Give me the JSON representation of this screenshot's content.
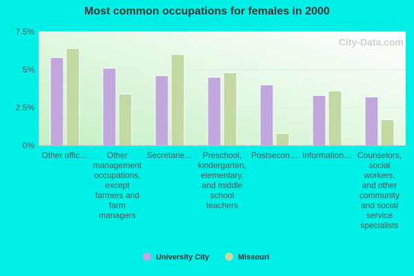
{
  "colors": {
    "background": "#00f0e8",
    "series": [
      "#c0a8dc",
      "#c4d8a4"
    ]
  },
  "chart_data": {
    "type": "bar",
    "title": "Most common occupations for females in 2000",
    "categories": [
      "Other offic…",
      "Other management occupations, except farmers and farm managers",
      "Secretarie…",
      "Preschool, kindergarten, elementary, and middle school teachers",
      "Postsecon…",
      "Information…",
      "Counselors, social workers, and other community and social service specialists"
    ],
    "category_lines": [
      [
        "Other offic…"
      ],
      [
        "Other",
        "management",
        "occupations,",
        "except",
        "farmers and",
        "farm",
        "managers"
      ],
      [
        "Secretarie…"
      ],
      [
        "Preschool,",
        "kindergarten,",
        "elementary,",
        "and middle",
        "school",
        "teachers"
      ],
      [
        "Postsecon…"
      ],
      [
        "Information…"
      ],
      [
        "Counselors,",
        "social",
        "workers,",
        "and other",
        "community",
        "and social",
        "service",
        "specialists"
      ]
    ],
    "series": [
      {
        "name": "University City",
        "values": [
          5.8,
          5.1,
          4.6,
          4.5,
          4.0,
          3.3,
          3.2
        ]
      },
      {
        "name": "Missouri",
        "values": [
          6.4,
          3.4,
          6.0,
          4.8,
          0.8,
          3.6,
          1.7
        ]
      }
    ],
    "y_ticks": [
      "0%",
      "2.5%",
      "5%",
      "7.5%"
    ],
    "y_tick_values": [
      0,
      2.5,
      5,
      7.5
    ],
    "ylim": [
      0,
      7.5
    ],
    "legend_position": "bottom"
  },
  "watermark": "City-Data.com"
}
